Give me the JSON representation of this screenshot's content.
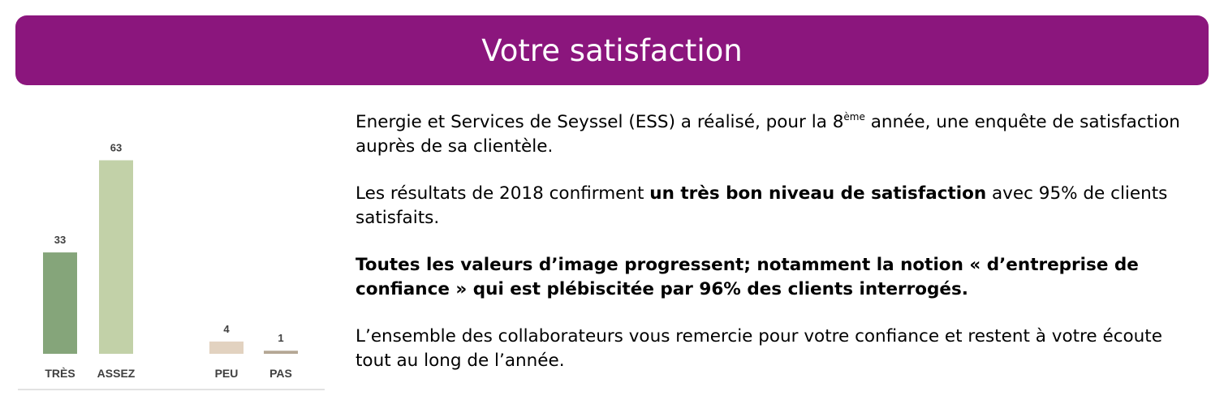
{
  "header": {
    "title": "Votre satisfaction",
    "color": "#8b167d"
  },
  "chart_data": {
    "type": "bar",
    "categories": [
      "TRÈS",
      "ASSEZ",
      "PEU",
      "PAS"
    ],
    "values": [
      33,
      63,
      4,
      1
    ],
    "colors": [
      "#85a57a",
      "#c2d1a8",
      "#e2d2c0",
      "#b5a795"
    ],
    "ylim": [
      0,
      70
    ],
    "grid": false,
    "data_labels": true,
    "axis_color": "#d9d9d9",
    "label_color": "#404040"
  },
  "body": {
    "p1_before": "Energie et Services de Seyssel (ESS) a réalisé, pour la 8",
    "p1_sup": "ème",
    "p1_after": " année, une enquête de satisfaction auprès de sa clientèle.",
    "p2_before": "Les résultats de 2018 confirment ",
    "p2_bold": "un très bon niveau de satisfaction",
    "p2_after": " avec 95% de clients satisfaits.",
    "p3_bold": "Toutes les valeurs d’image progressent; notamment la notion « d’entreprise de confiance » qui est plébiscitée par 96% des clients interrogés.",
    "p4": "L’ensemble des collaborateurs vous remercie pour votre confiance et restent à votre écoute tout au long de l’année."
  }
}
